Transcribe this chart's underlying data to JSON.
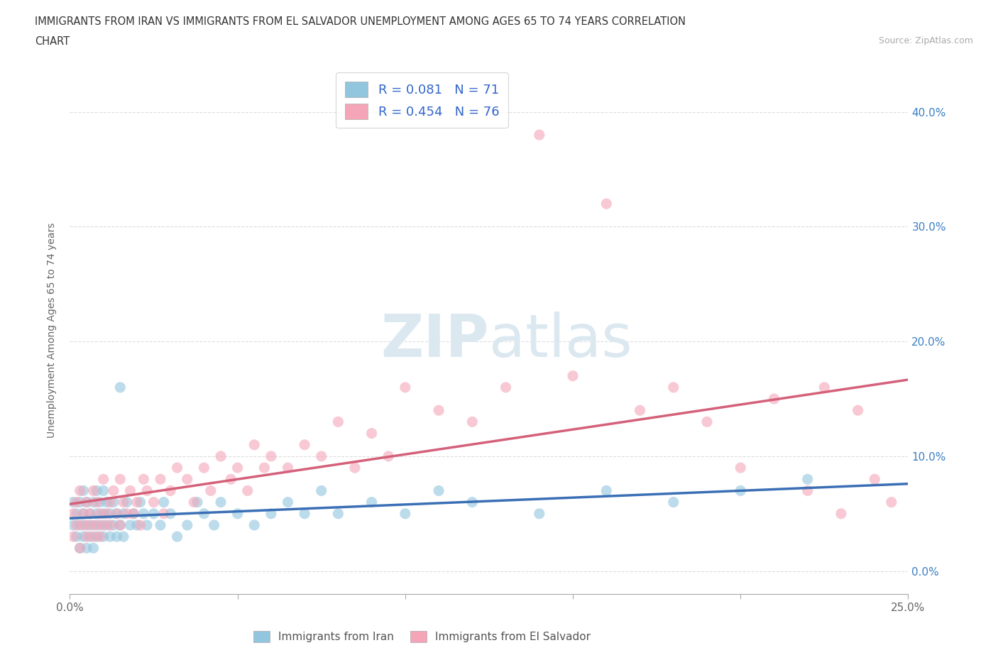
{
  "title_line1": "IMMIGRANTS FROM IRAN VS IMMIGRANTS FROM EL SALVADOR UNEMPLOYMENT AMONG AGES 65 TO 74 YEARS CORRELATION",
  "title_line2": "CHART",
  "source": "Source: ZipAtlas.com",
  "ylabel": "Unemployment Among Ages 65 to 74 years",
  "xlim": [
    0.0,
    0.25
  ],
  "ylim": [
    -0.02,
    0.44
  ],
  "xticks": [
    0.0,
    0.05,
    0.1,
    0.15,
    0.2,
    0.25
  ],
  "xticklabels": [
    "0.0%",
    "",
    "",
    "",
    "",
    "25.0%"
  ],
  "yticks": [
    0.0,
    0.1,
    0.2,
    0.3,
    0.4
  ],
  "yticklabels": [
    "0.0%",
    "10.0%",
    "20.0%",
    "30.0%",
    "40.0%"
  ],
  "iran_color": "#92C5DE",
  "salvador_color": "#F4A6B8",
  "iran_line_color": "#3B6FB5",
  "salvador_line_color": "#D4607A",
  "R_iran": 0.081,
  "N_iran": 71,
  "R_salvador": 0.454,
  "N_salvador": 76,
  "legend_label_iran": "Immigrants from Iran",
  "legend_label_salvador": "Immigrants from El Salvador",
  "background_color": "#ffffff",
  "watermark_color": "#dce8f0",
  "iran_scatter_x": [
    0.001,
    0.001,
    0.002,
    0.002,
    0.003,
    0.003,
    0.003,
    0.004,
    0.004,
    0.004,
    0.005,
    0.005,
    0.005,
    0.006,
    0.006,
    0.007,
    0.007,
    0.007,
    0.008,
    0.008,
    0.008,
    0.009,
    0.009,
    0.01,
    0.01,
    0.01,
    0.011,
    0.011,
    0.012,
    0.012,
    0.013,
    0.013,
    0.014,
    0.014,
    0.015,
    0.015,
    0.016,
    0.016,
    0.017,
    0.018,
    0.019,
    0.02,
    0.021,
    0.022,
    0.023,
    0.025,
    0.027,
    0.028,
    0.03,
    0.032,
    0.035,
    0.038,
    0.04,
    0.043,
    0.045,
    0.05,
    0.055,
    0.06,
    0.065,
    0.07,
    0.075,
    0.08,
    0.09,
    0.1,
    0.11,
    0.12,
    0.14,
    0.16,
    0.18,
    0.2,
    0.22
  ],
  "iran_scatter_y": [
    0.04,
    0.06,
    0.03,
    0.05,
    0.04,
    0.06,
    0.02,
    0.05,
    0.03,
    0.07,
    0.04,
    0.06,
    0.02,
    0.05,
    0.03,
    0.04,
    0.06,
    0.02,
    0.05,
    0.03,
    0.07,
    0.04,
    0.06,
    0.03,
    0.05,
    0.07,
    0.04,
    0.06,
    0.05,
    0.03,
    0.04,
    0.06,
    0.05,
    0.03,
    0.04,
    0.16,
    0.05,
    0.03,
    0.06,
    0.04,
    0.05,
    0.04,
    0.06,
    0.05,
    0.04,
    0.05,
    0.04,
    0.06,
    0.05,
    0.03,
    0.04,
    0.06,
    0.05,
    0.04,
    0.06,
    0.05,
    0.04,
    0.05,
    0.06,
    0.05,
    0.07,
    0.05,
    0.06,
    0.05,
    0.07,
    0.06,
    0.05,
    0.07,
    0.06,
    0.07,
    0.08
  ],
  "salvador_scatter_x": [
    0.001,
    0.001,
    0.002,
    0.002,
    0.003,
    0.003,
    0.004,
    0.004,
    0.005,
    0.005,
    0.006,
    0.006,
    0.007,
    0.007,
    0.008,
    0.008,
    0.009,
    0.009,
    0.01,
    0.01,
    0.011,
    0.012,
    0.012,
    0.013,
    0.014,
    0.015,
    0.015,
    0.016,
    0.017,
    0.018,
    0.019,
    0.02,
    0.021,
    0.022,
    0.023,
    0.025,
    0.027,
    0.028,
    0.03,
    0.032,
    0.035,
    0.037,
    0.04,
    0.042,
    0.045,
    0.048,
    0.05,
    0.053,
    0.055,
    0.058,
    0.06,
    0.065,
    0.07,
    0.075,
    0.08,
    0.085,
    0.09,
    0.095,
    0.1,
    0.11,
    0.12,
    0.13,
    0.14,
    0.15,
    0.16,
    0.17,
    0.18,
    0.19,
    0.2,
    0.21,
    0.22,
    0.225,
    0.23,
    0.235,
    0.24,
    0.245
  ],
  "salvador_scatter_y": [
    0.05,
    0.03,
    0.04,
    0.06,
    0.02,
    0.07,
    0.05,
    0.04,
    0.03,
    0.06,
    0.04,
    0.05,
    0.03,
    0.07,
    0.04,
    0.06,
    0.03,
    0.05,
    0.04,
    0.08,
    0.05,
    0.06,
    0.04,
    0.07,
    0.05,
    0.04,
    0.08,
    0.06,
    0.05,
    0.07,
    0.05,
    0.06,
    0.04,
    0.08,
    0.07,
    0.06,
    0.08,
    0.05,
    0.07,
    0.09,
    0.08,
    0.06,
    0.09,
    0.07,
    0.1,
    0.08,
    0.09,
    0.07,
    0.11,
    0.09,
    0.1,
    0.09,
    0.11,
    0.1,
    0.13,
    0.09,
    0.12,
    0.1,
    0.16,
    0.14,
    0.13,
    0.16,
    0.38,
    0.17,
    0.32,
    0.14,
    0.16,
    0.13,
    0.09,
    0.15,
    0.07,
    0.16,
    0.05,
    0.14,
    0.08,
    0.06
  ]
}
